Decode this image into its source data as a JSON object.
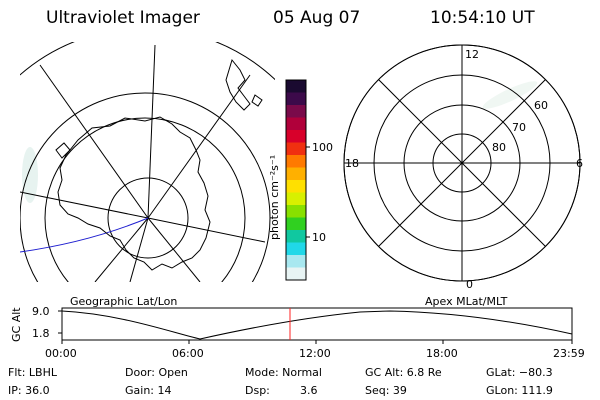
{
  "header": {
    "instrument": "Ultraviolet Imager",
    "date": "05 Aug 07",
    "time": "10:54:10 UT"
  },
  "left_panel": {
    "title": "Geographic Lat/Lon"
  },
  "colorbar": {
    "label": "photon cm⁻²s⁻¹",
    "ticks": [
      "100",
      "10"
    ],
    "colors": [
      "#1a0a30",
      "#3c0a4a",
      "#7a0a4a",
      "#b0003a",
      "#d8002a",
      "#f03010",
      "#ff7a00",
      "#ffb000",
      "#ffe000",
      "#d8f000",
      "#88e000",
      "#30d020",
      "#10c8a0",
      "#20d8e8",
      "#a8e8f0",
      "#e8f4f4"
    ]
  },
  "right_panel": {
    "title": "Apex MLat/MLT",
    "mlt_labels": [
      "12",
      "18",
      "6",
      "0"
    ],
    "mlat_labels": [
      "60",
      "70",
      "80"
    ]
  },
  "altitude_plot": {
    "ylabel": "GC Alt",
    "yticks": [
      "9.0",
      "1.8"
    ],
    "xticks": [
      "00:00",
      "06:00",
      "12:00",
      "18:00",
      "23:59"
    ],
    "current_marker_color": "#ff2020"
  },
  "info": {
    "filter": "Flt: LBHL",
    "ip": "IP: 36.0",
    "door": "Door: Open",
    "gain": "Gain: 14",
    "mode": "Mode: Normal",
    "dsp_label": "Dsp:",
    "dsp_value": "3.6",
    "gc_alt": "GC Alt: 6.8 Re",
    "seq": "Seq: 39",
    "glat": "GLat: −80.3",
    "glon": "GLon: 111.9"
  }
}
